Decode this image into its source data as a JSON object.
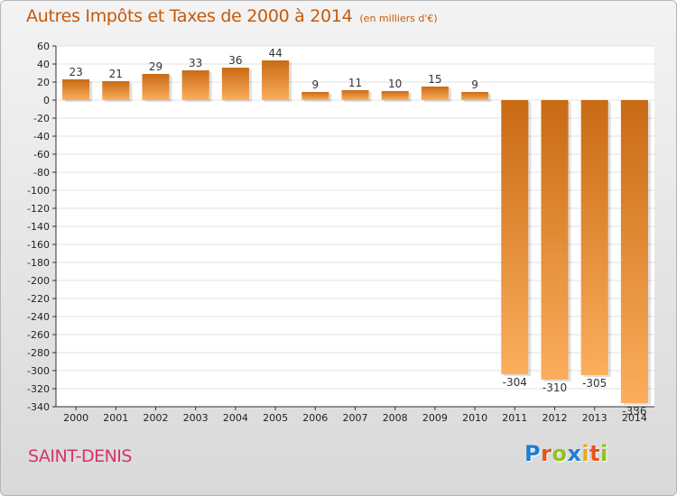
{
  "title": "Autres Impôts et Taxes de 2000 à 2014",
  "subtitle": "(en milliers d'€)",
  "place_name": "SAINT-DENIS",
  "logo": {
    "text": "Proxiti",
    "letters": [
      "P",
      "r",
      "o",
      "x",
      "i",
      "t",
      "i"
    ],
    "colors": [
      "#1f7fd1",
      "#e8541b",
      "#8fc31f",
      "#1f7fd1",
      "#e8a91b",
      "#e8541b",
      "#8fc31f"
    ]
  },
  "colors": {
    "title": "#c55a0a",
    "place": "#d6336c",
    "bar_top": "#c96a14",
    "bar_bottom": "#fbae5c",
    "axis": "#333333",
    "grid": "#e0e0e0"
  },
  "chart_data": {
    "type": "bar",
    "categories": [
      "2000",
      "2001",
      "2002",
      "2003",
      "2004",
      "2005",
      "2006",
      "2007",
      "2008",
      "2009",
      "2010",
      "2011",
      "2012",
      "2013",
      "2014"
    ],
    "values": [
      23,
      21,
      29,
      33,
      36,
      44,
      9,
      11,
      10,
      15,
      9,
      -304,
      -310,
      -305,
      -336
    ],
    "labels": [
      "23",
      "21",
      "29",
      "33",
      "36",
      "44",
      "9",
      "11",
      "10",
      "15",
      "9",
      "-304",
      "-310",
      "-305",
      "-336"
    ],
    "ylim": [
      -340,
      60
    ],
    "yticks": [
      60,
      40,
      20,
      0,
      -20,
      -40,
      -60,
      -80,
      -100,
      -120,
      -140,
      -160,
      -180,
      -200,
      -220,
      -240,
      -260,
      -280,
      -300,
      -320,
      -340
    ],
    "grid": true,
    "legend": "none"
  }
}
